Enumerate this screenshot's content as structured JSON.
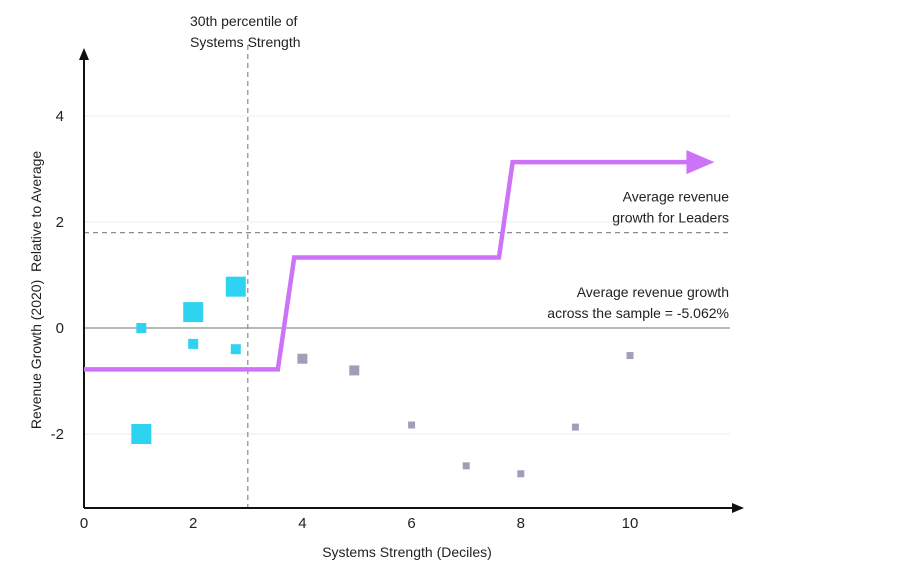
{
  "chart_data": {
    "type": "scatter",
    "xlabel": "Systems Strength (Deciles)",
    "ylabel": "Revenue Growth (2020)  Relative to Average",
    "xlim": [
      0,
      12
    ],
    "ylim": [
      -3.4,
      5.1
    ],
    "x_ticks": [
      0,
      2,
      4,
      6,
      8,
      10
    ],
    "y_ticks": [
      -2,
      0,
      2,
      4
    ],
    "grid": true,
    "series": [
      {
        "color": "#2ed3f2",
        "points": [
          {
            "x": 1.05,
            "y": 0.0,
            "size": "small"
          },
          {
            "x": 1.05,
            "y": -2.0,
            "size": "large"
          },
          {
            "x": 2.0,
            "y": 0.3,
            "size": "large"
          },
          {
            "x": 2.0,
            "y": -0.3,
            "size": "small"
          },
          {
            "x": 2.78,
            "y": 0.78,
            "size": "large"
          },
          {
            "x": 2.78,
            "y": -0.4,
            "size": "small"
          }
        ]
      },
      {
        "color": "#a09fb8",
        "points": [
          {
            "x": 4.0,
            "y": -0.58,
            "size": "medium"
          },
          {
            "x": 4.95,
            "y": -0.8,
            "size": "medium"
          },
          {
            "x": 6.0,
            "y": -1.83,
            "size": "xsmall"
          },
          {
            "x": 7.0,
            "y": -2.6,
            "size": "xsmall"
          },
          {
            "x": 8.0,
            "y": -2.75,
            "size": "xsmall"
          },
          {
            "x": 9.0,
            "y": -1.87,
            "size": "xsmall"
          },
          {
            "x": 10.0,
            "y": -0.52,
            "size": "xsmall"
          }
        ]
      }
    ],
    "step_line": {
      "color": "#cc73f8",
      "points": [
        {
          "x": 0.0,
          "y": -0.78
        },
        {
          "x": 3.55,
          "y": -0.78
        },
        {
          "x": 3.85,
          "y": 1.33
        },
        {
          "x": 7.6,
          "y": 1.33
        },
        {
          "x": 7.85,
          "y": 3.13
        },
        {
          "x": 11.4,
          "y": 3.13
        }
      ]
    },
    "reference_lines": [
      {
        "orientation": "vertical",
        "value": 3.0,
        "style": "dashed",
        "label": "30th percentile of\nSystems Strength"
      },
      {
        "orientation": "horizontal",
        "value": 1.8,
        "style": "dashed",
        "label": "Average revenue\ngrowth for Leaders"
      },
      {
        "orientation": "horizontal",
        "value": 0.0,
        "style": "solid",
        "label": "Average revenue growth\nacross the sample = -5.062%"
      }
    ]
  },
  "colors": {
    "axis": "#111111",
    "grid": "#ececec",
    "reference": "#8a8a8a",
    "zero_line": "#8c8c8c"
  }
}
